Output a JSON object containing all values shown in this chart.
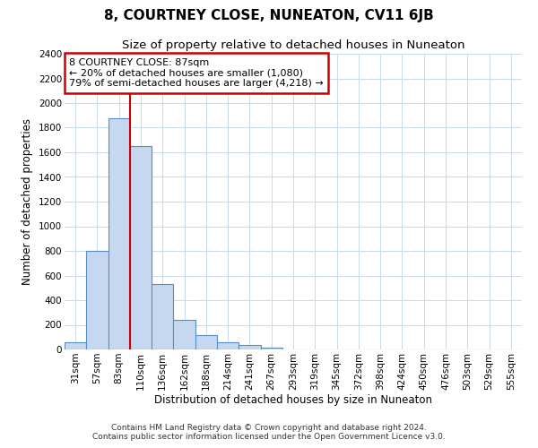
{
  "title": "8, COURTNEY CLOSE, NUNEATON, CV11 6JB",
  "subtitle": "Size of property relative to detached houses in Nuneaton",
  "xlabel": "Distribution of detached houses by size in Nuneaton",
  "ylabel": "Number of detached properties",
  "bar_labels": [
    "31sqm",
    "57sqm",
    "83sqm",
    "110sqm",
    "136sqm",
    "162sqm",
    "188sqm",
    "214sqm",
    "241sqm",
    "267sqm",
    "293sqm",
    "319sqm",
    "345sqm",
    "372sqm",
    "398sqm",
    "424sqm",
    "450sqm",
    "476sqm",
    "503sqm",
    "529sqm",
    "555sqm"
  ],
  "bar_values": [
    55,
    800,
    1880,
    1650,
    530,
    243,
    115,
    55,
    33,
    12,
    0,
    0,
    0,
    0,
    0,
    0,
    0,
    0,
    0,
    0,
    0
  ],
  "bar_color": "#c5d8ef",
  "bar_edge_color": "#5b8cc8",
  "vline_index": 2,
  "vline_color": "#cc0000",
  "annotation_line1": "8 COURTNEY CLOSE: 87sqm",
  "annotation_line2": "← 20% of detached houses are smaller (1,080)",
  "annotation_line3": "79% of semi-detached houses are larger (4,218) →",
  "annotation_box_color": "#ffffff",
  "annotation_box_edge_color": "#cc0000",
  "ylim": [
    0,
    2400
  ],
  "yticks": [
    0,
    200,
    400,
    600,
    800,
    1000,
    1200,
    1400,
    1600,
    1800,
    2000,
    2200,
    2400
  ],
  "footer1": "Contains HM Land Registry data © Crown copyright and database right 2024.",
  "footer2": "Contains public sector information licensed under the Open Government Licence v3.0.",
  "bg_color": "#ffffff",
  "grid_color": "#c8d8ee",
  "title_fontsize": 11,
  "subtitle_fontsize": 9.5,
  "axis_label_fontsize": 8.5,
  "tick_fontsize": 7.5,
  "annotation_fontsize": 8,
  "footer_fontsize": 6.5
}
